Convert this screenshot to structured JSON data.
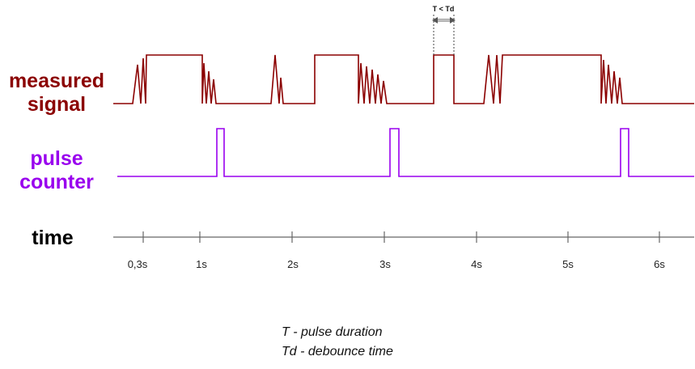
{
  "labels": {
    "measured": "measured signal",
    "pulse": "pulse counter",
    "time": "time"
  },
  "annotation": {
    "t_vs_td": "T < Td"
  },
  "legend": {
    "t": "T - pulse duration",
    "td": "Td - debounce time"
  },
  "axis": {
    "ticks": [
      "0,3s",
      "1s",
      "2s",
      "3s",
      "4s",
      "5s",
      "6s"
    ]
  },
  "colors": {
    "measured": "#8b0000",
    "pulse": "#9900ee",
    "axis": "#666666"
  }
}
